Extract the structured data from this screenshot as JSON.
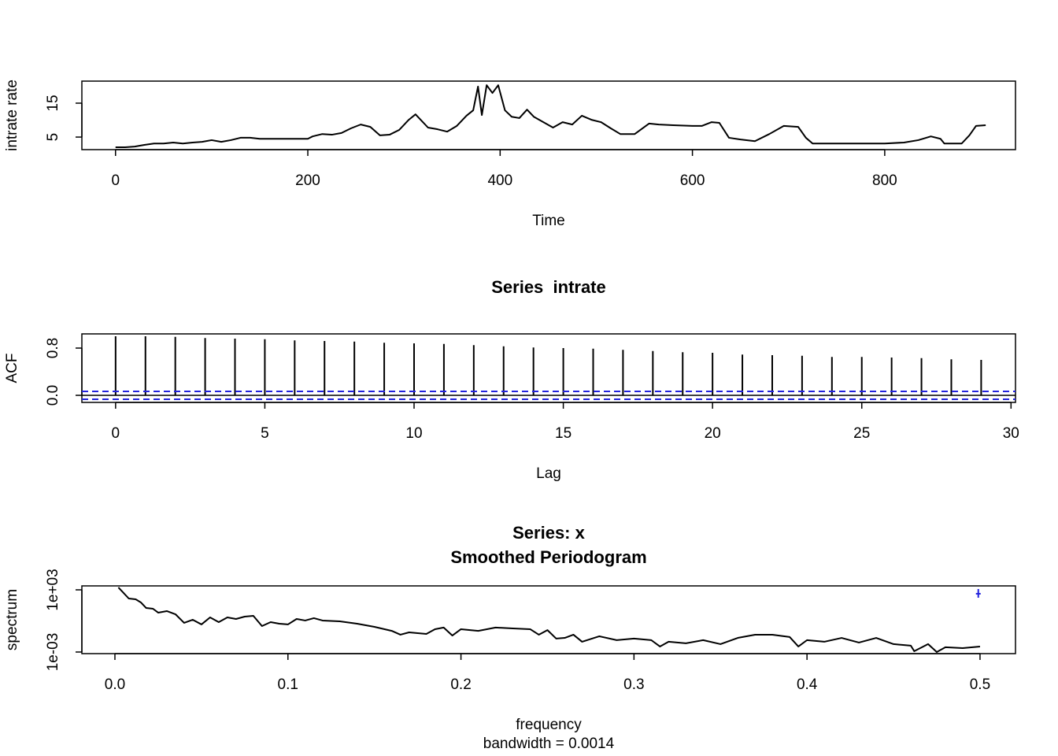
{
  "chart_data": [
    {
      "type": "line",
      "ylabel": "intrate rate",
      "xlabel": "Time",
      "color": "#000000",
      "x": [
        0,
        10,
        20,
        30,
        40,
        50,
        60,
        70,
        80,
        90,
        100,
        110,
        120,
        130,
        140,
        150,
        160,
        200,
        205,
        215,
        225,
        235,
        245,
        255,
        265,
        275,
        285,
        295,
        305,
        312,
        318,
        325,
        335,
        345,
        355,
        365,
        372,
        377,
        381,
        386,
        392,
        398,
        405,
        412,
        420,
        428,
        435,
        445,
        455,
        465,
        475,
        485,
        495,
        505,
        515,
        525,
        540,
        555,
        565,
        580,
        600,
        610,
        620,
        628,
        638,
        650,
        665,
        680,
        695,
        710,
        718,
        725,
        760,
        800,
        820,
        835,
        848,
        858,
        862,
        880,
        888,
        895,
        905
      ],
      "values": [
        2.0,
        2.0,
        2.2,
        2.7,
        3.1,
        3.1,
        3.4,
        3.1,
        3.4,
        3.6,
        4.1,
        3.6,
        4.1,
        4.8,
        4.8,
        4.5,
        4.5,
        4.5,
        5.2,
        5.9,
        5.7,
        6.2,
        7.6,
        8.7,
        8.0,
        5.5,
        5.7,
        7.1,
        10.1,
        11.7,
        9.9,
        7.8,
        7.3,
        6.6,
        8.3,
        11.3,
        12.9,
        19.9,
        11.5,
        20.3,
        18.0,
        20.3,
        12.9,
        11.0,
        10.6,
        13.1,
        11.0,
        9.4,
        7.8,
        9.4,
        8.7,
        11.3,
        10.1,
        9.4,
        7.6,
        5.9,
        5.9,
        9.0,
        8.7,
        8.5,
        8.3,
        8.3,
        9.4,
        9.2,
        4.8,
        4.3,
        3.8,
        5.9,
        8.3,
        8.0,
        4.8,
        3.1,
        3.1,
        3.1,
        3.4,
        4.1,
        5.2,
        4.5,
        3.1,
        3.1,
        5.5,
        8.3,
        8.5
      ],
      "xlim": [
        -35,
        936
      ],
      "xticks": [
        0,
        200,
        400,
        600,
        800
      ],
      "ylim": [
        1.3,
        21.5
      ],
      "yticks": [
        5,
        15
      ]
    },
    {
      "type": "bar",
      "title": "Series  intrate",
      "ylabel": "ACF",
      "xlabel": "Lag",
      "color": "#000000",
      "ci_color": "#2222dd",
      "x": [
        0,
        1,
        2,
        3,
        4,
        5,
        6,
        7,
        8,
        9,
        10,
        11,
        12,
        13,
        14,
        15,
        16,
        17,
        18,
        19,
        20,
        21,
        22,
        23,
        24,
        25,
        26,
        27,
        28,
        29
      ],
      "values": [
        1.0,
        1.0,
        0.99,
        0.97,
        0.96,
        0.95,
        0.93,
        0.92,
        0.91,
        0.89,
        0.88,
        0.87,
        0.85,
        0.83,
        0.81,
        0.8,
        0.79,
        0.77,
        0.75,
        0.73,
        0.72,
        0.69,
        0.68,
        0.67,
        0.65,
        0.65,
        0.64,
        0.63,
        0.61,
        0.6
      ],
      "ci": 0.067,
      "xlim": [
        -1.13,
        30.15
      ],
      "xticks": [
        0,
        5,
        10,
        15,
        20,
        25,
        30
      ],
      "ylim": [
        -0.12,
        1.04
      ],
      "yticks": [
        {
          "value": 0,
          "label": "0.0"
        },
        0.8
      ]
    },
    {
      "type": "line",
      "title": "Series: x",
      "subtitle": "Smoothed Periodogram",
      "ylabel": "spectrum",
      "xlabel": "frequency",
      "caption": "bandwidth = 0.0014",
      "color": "#000000",
      "ci_color": "#2222dd",
      "yscale": "log",
      "x": [
        0.002,
        0.005,
        0.008,
        0.012,
        0.015,
        0.018,
        0.022,
        0.025,
        0.03,
        0.035,
        0.04,
        0.045,
        0.05,
        0.055,
        0.06,
        0.065,
        0.07,
        0.075,
        0.08,
        0.085,
        0.09,
        0.095,
        0.1,
        0.105,
        0.11,
        0.115,
        0.12,
        0.13,
        0.14,
        0.15,
        0.16,
        0.165,
        0.17,
        0.18,
        0.185,
        0.19,
        0.195,
        0.2,
        0.21,
        0.22,
        0.23,
        0.24,
        0.245,
        0.25,
        0.255,
        0.26,
        0.265,
        0.27,
        0.28,
        0.29,
        0.3,
        0.31,
        0.315,
        0.32,
        0.33,
        0.34,
        0.35,
        0.36,
        0.37,
        0.38,
        0.39,
        0.395,
        0.4,
        0.41,
        0.42,
        0.43,
        0.44,
        0.45,
        0.46,
        0.462,
        0.47,
        0.475,
        0.48,
        0.49,
        0.5
      ],
      "values": [
        1700,
        500,
        146,
        123,
        61,
        18,
        15,
        6.3,
        8.9,
        4.4,
        0.65,
        1.3,
        0.46,
        2.2,
        0.77,
        2.2,
        1.55,
        2.6,
        3.1,
        0.32,
        0.77,
        0.54,
        0.46,
        1.55,
        1.1,
        1.85,
        1.1,
        0.92,
        0.54,
        0.27,
        0.11,
        0.047,
        0.079,
        0.056,
        0.16,
        0.23,
        0.039,
        0.16,
        0.11,
        0.23,
        0.19,
        0.16,
        0.047,
        0.13,
        0.02,
        0.023,
        0.047,
        0.0098,
        0.033,
        0.014,
        0.02,
        0.014,
        0.0034,
        0.0098,
        0.0069,
        0.014,
        0.0058,
        0.023,
        0.047,
        0.047,
        0.028,
        0.0034,
        0.014,
        0.0098,
        0.023,
        0.0082,
        0.023,
        0.0058,
        0.0041,
        0.0012,
        0.0058,
        0.001,
        0.0029,
        0.0024,
        0.0034
      ],
      "ci_bar": {
        "x": 0.499,
        "lower": 174,
        "center": 420,
        "upper": 1200
      },
      "xlim": [
        -0.0191,
        0.5205
      ],
      "xticks": [
        {
          "value": 0,
          "label": "0.0"
        },
        0.1,
        0.2,
        0.3,
        0.4,
        0.5
      ],
      "ylim": [
        0.0007,
        2400
      ],
      "yticks": [
        {
          "value": 0.001,
          "label": "1e-03"
        },
        {
          "value": 1000,
          "label": "1e+03"
        }
      ]
    }
  ]
}
